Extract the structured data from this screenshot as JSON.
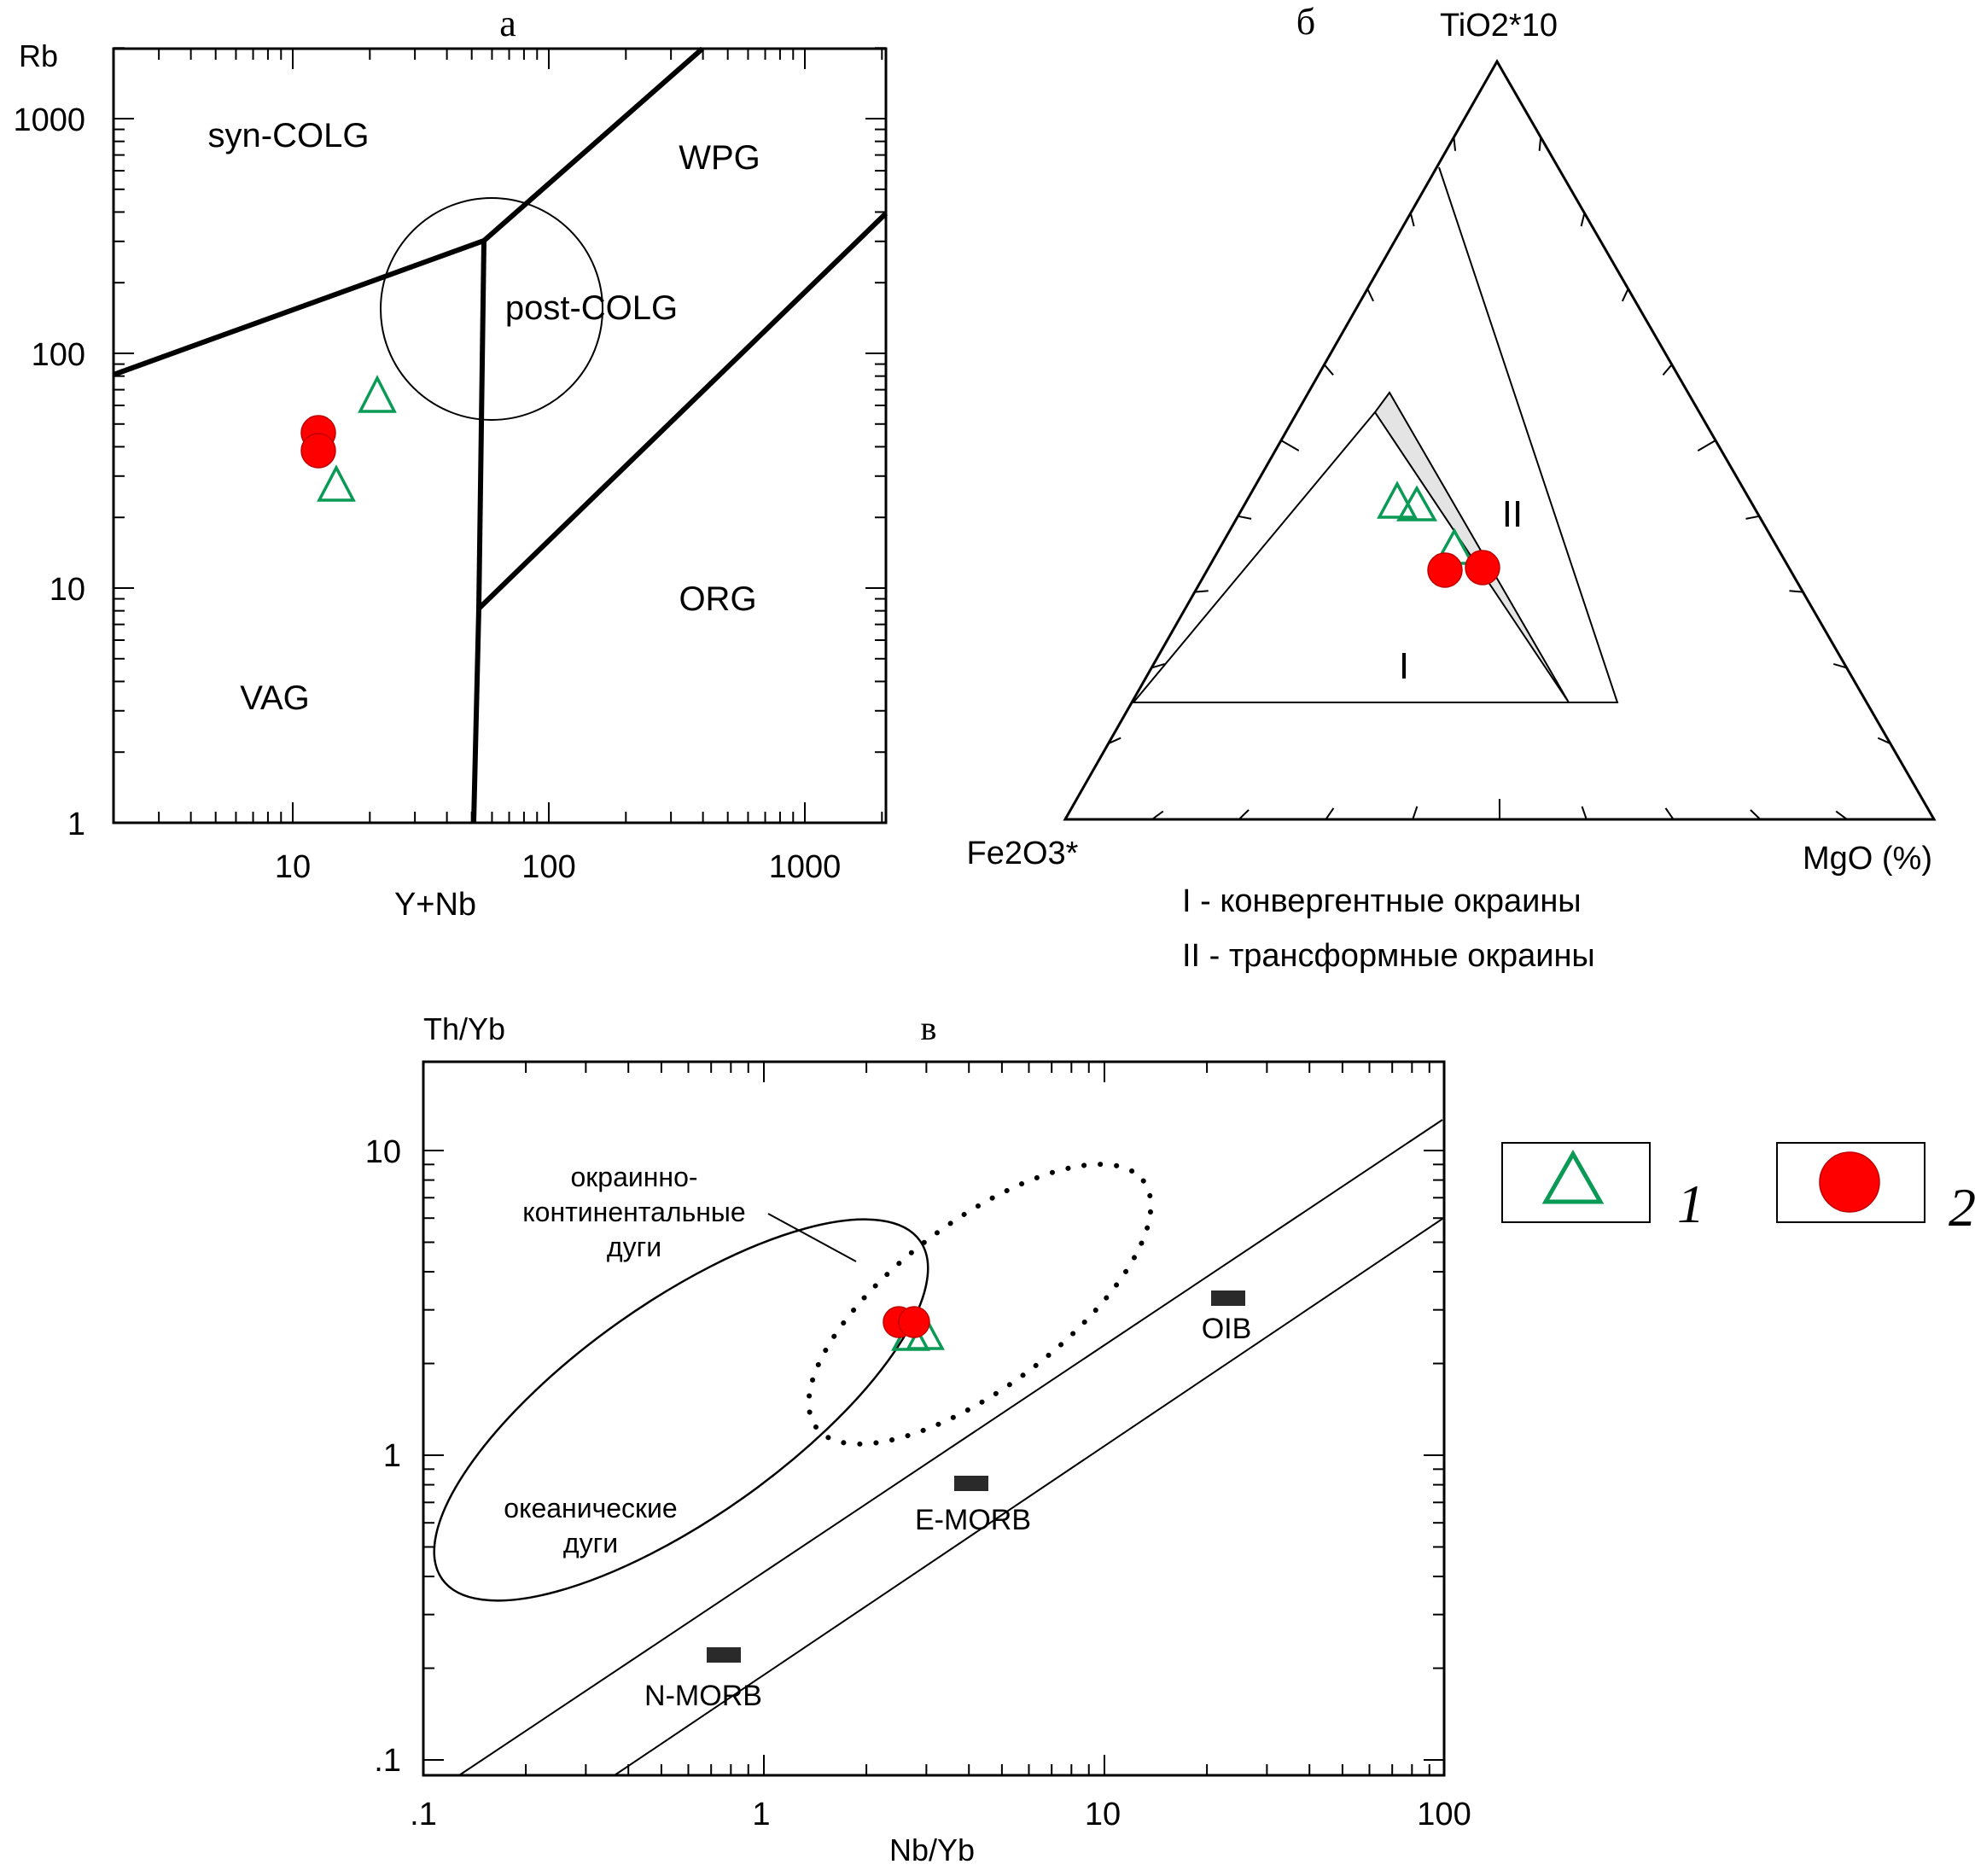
{
  "panel_a": {
    "label": "а",
    "y_axis_label": "Rb",
    "x_axis_label": "Y+Nb",
    "y_ticks": [
      "1",
      "10",
      "100",
      "1000"
    ],
    "x_ticks": [
      "10",
      "100",
      "1000"
    ],
    "fields": [
      "syn-COLG",
      "WPG",
      "post-COLG",
      "ORG",
      "VAG"
    ]
  },
  "panel_b": {
    "label": "б",
    "apex_top": "TiO2*10",
    "apex_left": "Fe2O3*",
    "apex_right": "MgO (%)",
    "fields": [
      "I",
      "II"
    ],
    "legend": [
      "I - конвергентные окраины",
      "II - трансформные окраины"
    ]
  },
  "panel_c": {
    "label": "в",
    "y_axis_label": "Th/Yb",
    "x_axis_label": "Nb/Yb",
    "y_ticks": [
      ".1",
      "1",
      "10"
    ],
    "x_ticks": [
      ".1",
      "1",
      "10",
      "100"
    ],
    "field_oceanic": [
      "океанические",
      "дуги"
    ],
    "field_continental": [
      "окраинно-",
      "континентальные",
      "дуги"
    ],
    "references": [
      "N-MORB",
      "E-MORB",
      "OIB"
    ]
  },
  "legend": {
    "symbol_1": "1",
    "symbol_2": "2"
  },
  "colors": {
    "group1": "#0a9a55",
    "group2": "#ff0000"
  },
  "chart_data": [
    {
      "type": "scatter",
      "name": "а",
      "xlabel": "Y+Nb",
      "ylabel": "Rb",
      "x_scale": "log",
      "y_scale": "log",
      "xlim": [
        2,
        2000
      ],
      "ylim": [
        1,
        2000
      ],
      "series": [
        {
          "marker": "triangle",
          "points": [
            [
              22,
              62
            ],
            [
              15,
              26
            ]
          ]
        },
        {
          "marker": "circle",
          "points": [
            [
              13,
              45
            ],
            [
              13,
              38
            ]
          ]
        }
      ],
      "boundaries": [
        [
          [
            2,
            80
          ],
          [
            55,
            300
          ],
          [
            420,
            2000
          ]
        ],
        [
          [
            55,
            300
          ],
          [
            52,
            8
          ],
          [
            51,
            1
          ]
        ],
        [
          [
            52,
            8
          ],
          [
            2000,
            400
          ]
        ]
      ],
      "fields": [
        "syn-COLG",
        "WPG",
        "post-COLG",
        "ORG",
        "VAG"
      ]
    },
    {
      "type": "scatter",
      "name": "б",
      "axes": [
        "TiO2*10",
        "Fe2O3*",
        "MgO (%)"
      ],
      "series": [
        {
          "marker": "triangle",
          "points": [
            [
              0.38,
              0.48,
              0.14
            ],
            [
              0.38,
              0.45,
              0.17
            ],
            [
              0.31,
              0.49,
              0.2
            ]
          ]
        },
        {
          "marker": "circle",
          "points": [
            [
              0.29,
              0.51,
              0.2
            ],
            [
              0.29,
              0.47,
              0.24
            ]
          ]
        }
      ],
      "fields": [
        "I",
        "II"
      ]
    },
    {
      "type": "scatter",
      "name": "в",
      "xlabel": "Nb/Yb",
      "ylabel": "Th/Yb",
      "x_scale": "log",
      "y_scale": "log",
      "xlim": [
        0.1,
        100
      ],
      "ylim": [
        0.1,
        20
      ],
      "series": [
        {
          "marker": "triangle",
          "points": [
            [
              2.6,
              2.4
            ],
            [
              3.0,
              2.45
            ]
          ]
        },
        {
          "marker": "circle",
          "points": [
            [
              2.5,
              2.7
            ],
            [
              2.8,
              2.7
            ]
          ]
        }
      ],
      "references": [
        {
          "name": "N-MORB",
          "x": 0.76,
          "y": 0.225
        },
        {
          "name": "E-MORB",
          "x": 4.1,
          "y": 0.8
        },
        {
          "name": "OIB",
          "x": 24,
          "y": 3.3
        }
      ],
      "mantle_array": [
        [
          [
            0.13,
            0.1
          ],
          [
            100,
            13
          ]
        ],
        [
          [
            0.38,
            0.1
          ],
          [
            100,
            6
          ]
        ]
      ]
    }
  ]
}
